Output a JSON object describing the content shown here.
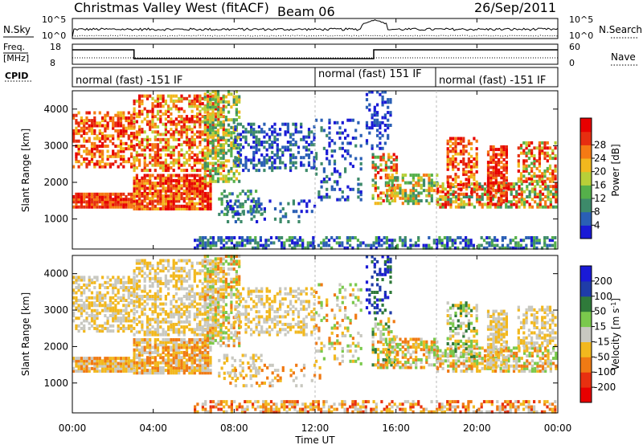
{
  "header": {
    "station": "Christmas Valley West (fitACF)",
    "beam": "Beam 06",
    "date": "26/Sep/2011"
  },
  "nsky_panel": {
    "label": "N.Sky",
    "ticks_left": [
      "10^5",
      "10^0"
    ],
    "ticks_right": [
      "10^5",
      "10^0"
    ],
    "right_label": "N.Search"
  },
  "freq_panel": {
    "label_line1": "Freq.",
    "label_line2": "[MHz]",
    "ticks_left": [
      "18",
      "8"
    ],
    "ticks_right": [
      "60",
      "0"
    ],
    "right_label": "Nave"
  },
  "cpid_panel": {
    "label": "CPID",
    "segments": [
      {
        "text": "normal (fast) -151 IF",
        "start_hour": 0
      },
      {
        "text": "normal (fast) 151 IF",
        "start_hour": 12
      },
      {
        "text": "normal (fast) -151 IF",
        "start_hour": 18
      }
    ]
  },
  "time_axis": {
    "label": "Time UT",
    "ticks": [
      "00:00",
      "04:00",
      "08:00",
      "12:00",
      "16:00",
      "20:00",
      "00:00"
    ],
    "hours": [
      0,
      4,
      8,
      12,
      16,
      20,
      24
    ]
  },
  "chart_data": [
    {
      "type": "heatmap",
      "panel": "power",
      "ylabel": "Slant Range [km]",
      "yticks": [
        1000,
        2000,
        3000,
        4000
      ],
      "ylim": [
        180,
        4500
      ],
      "xlim": [
        0,
        24
      ],
      "colorbar_label": "Power [dB]",
      "colorbar_ticks": [
        4,
        8,
        12,
        16,
        20,
        24,
        28
      ],
      "colorbar_range": [
        0,
        32
      ],
      "colors": [
        "#1a1ad6",
        "#2a5fb5",
        "#3d8a6a",
        "#55b04a",
        "#b8cf38",
        "#f2b81e",
        "#f57a14",
        "#e62e10",
        "#e80000"
      ]
    },
    {
      "type": "heatmap",
      "panel": "velocity",
      "ylabel": "Slant Range [km]",
      "yticks": [
        1000,
        2000,
        3000,
        4000
      ],
      "ylim": [
        180,
        4500
      ],
      "xlim": [
        0,
        24
      ],
      "colorbar_label": "Velocity [m s^-1]",
      "colorbar_ticks": [
        "200",
        "100",
        "50",
        "15",
        "-15",
        "-50",
        "-100",
        "-200"
      ],
      "colors": [
        "#1a1ad6",
        "#1f3ca8",
        "#2f7a3a",
        "#7ac94c",
        "#c8c8c0",
        "#f2b81e",
        "#f07a14",
        "#e83010",
        "#e80000"
      ]
    }
  ]
}
